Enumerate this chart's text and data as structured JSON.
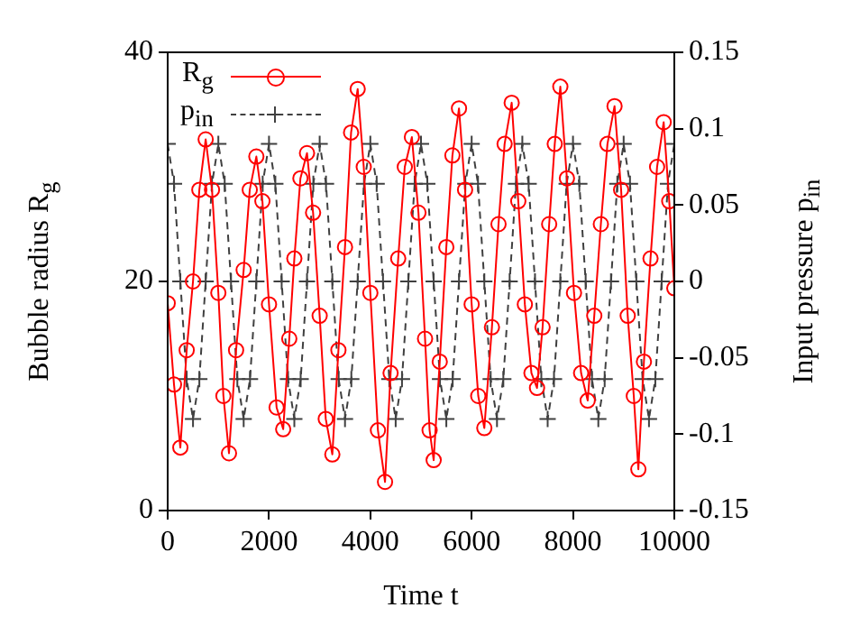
{
  "chart_data": {
    "type": "line",
    "xlabel": "Time t",
    "ylabel": "Bubble radius R$_{g}$",
    "y2label": "Input pressure p$_{in}$",
    "xlim": [
      0,
      10000
    ],
    "xticks": [
      0,
      2000,
      4000,
      6000,
      8000,
      10000
    ],
    "ylim": [
      0,
      40
    ],
    "yticks": [
      0,
      20,
      40
    ],
    "y2lim": [
      -0.15,
      0.15
    ],
    "y2ticks": [
      -0.15,
      -0.1,
      -0.05,
      0,
      0.05,
      0.1,
      0.15
    ],
    "grid": false,
    "legend": "top left",
    "series": [
      {
        "name": "R$_{g}$",
        "color": "#ff0000",
        "marker": "circle",
        "line_style": "solid",
        "x": [
          0,
          125,
          250,
          375,
          500,
          625,
          750,
          875,
          1000,
          1100,
          1210,
          1350,
          1500,
          1620,
          1750,
          1870,
          2000,
          2150,
          2280,
          2400,
          2500,
          2620,
          2750,
          2870,
          3000,
          3120,
          3250,
          3370,
          3500,
          3620,
          3750,
          3870,
          4000,
          4150,
          4290,
          4400,
          4550,
          4680,
          4820,
          4950,
          5080,
          5170,
          5250,
          5370,
          5500,
          5620,
          5750,
          5870,
          6000,
          6130,
          6250,
          6400,
          6530,
          6650,
          6790,
          6920,
          7050,
          7180,
          7290,
          7400,
          7530,
          7640,
          7750,
          7880,
          8020,
          8160,
          8290,
          8420,
          8550,
          8680,
          8820,
          8950,
          9080,
          9200,
          9290,
          9400,
          9530,
          9660,
          9790,
          9900,
          10000
        ],
        "values": [
          18.1,
          11,
          5.5,
          14,
          20,
          28,
          32.4,
          28,
          19,
          10,
          5.0,
          14,
          21,
          28,
          30.9,
          27,
          18,
          9,
          7.1,
          15,
          22,
          29,
          31.2,
          26,
          17,
          8,
          4.9,
          14,
          23,
          33,
          36.8,
          30,
          19,
          7,
          2.5,
          12,
          22,
          30,
          32.6,
          26,
          15,
          7,
          4.4,
          13,
          23,
          31,
          35.1,
          28,
          18,
          10,
          7.2,
          16,
          25,
          32,
          35.6,
          27,
          18,
          12,
          10.7,
          16,
          25,
          32,
          37.0,
          29,
          19,
          12,
          9.6,
          17,
          25,
          32,
          35.3,
          28,
          17,
          10,
          3.6,
          13,
          22,
          30,
          33.9,
          27,
          19.4
        ]
      },
      {
        "name": "p$_{in}$",
        "color": "#404040",
        "marker": "cross",
        "line_style": "dashed",
        "axis": "y2",
        "x": [
          0,
          125,
          250,
          375,
          500,
          625,
          750,
          875,
          1000,
          1125,
          1250,
          1375,
          1500,
          1625,
          1750,
          1875,
          2000,
          2125,
          2250,
          2375,
          2500,
          2625,
          2750,
          2875,
          3000,
          3125,
          3250,
          3375,
          3500,
          3625,
          3750,
          3875,
          4000,
          4125,
          4250,
          4375,
          4500,
          4625,
          4750,
          4875,
          5000,
          5125,
          5250,
          5375,
          5500,
          5625,
          5750,
          5875,
          6000,
          6125,
          6250,
          6375,
          6500,
          6625,
          6750,
          6875,
          7000,
          7125,
          7250,
          7375,
          7500,
          7625,
          7750,
          7875,
          8000,
          8125,
          8250,
          8375,
          8500,
          8625,
          8750,
          8875,
          9000,
          9125,
          9250,
          9375,
          9500,
          9625,
          9750,
          9875,
          10000
        ],
        "values": [
          0.09,
          0.064,
          0,
          -0.064,
          -0.09,
          -0.064,
          0,
          0.064,
          0.09,
          0.064,
          0,
          -0.064,
          -0.09,
          -0.064,
          0,
          0.064,
          0.09,
          0.064,
          0,
          -0.064,
          -0.09,
          -0.064,
          0,
          0.064,
          0.09,
          0.064,
          0,
          -0.064,
          -0.09,
          -0.064,
          0,
          0.064,
          0.09,
          0.064,
          0,
          -0.064,
          -0.09,
          -0.064,
          0,
          0.064,
          0.09,
          0.064,
          0,
          -0.064,
          -0.09,
          -0.064,
          0,
          0.064,
          0.09,
          0.064,
          0,
          -0.064,
          -0.09,
          -0.064,
          0,
          0.064,
          0.09,
          0.064,
          0,
          -0.064,
          -0.09,
          -0.064,
          0,
          0.064,
          0.09,
          0.064,
          0,
          -0.064,
          -0.09,
          -0.064,
          0,
          0.064,
          0.09,
          0.064,
          0,
          -0.064,
          -0.09,
          -0.064,
          0,
          0.064,
          0.09
        ]
      }
    ]
  }
}
